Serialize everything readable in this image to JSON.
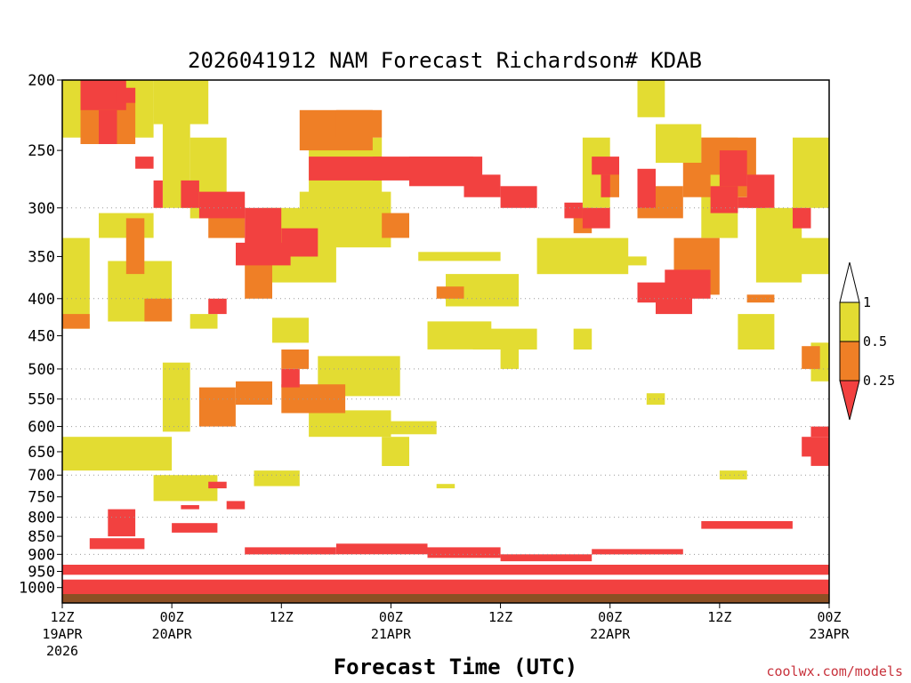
{
  "chart_data": {
    "type": "heatmap",
    "title": "2026041912 NAM Forecast Richardson# KDAB",
    "xlabel": "Forecast Time (UTC)",
    "ylabel": "",
    "y_scale": "log-pressure (hPa), inverted",
    "ylim": [
      200,
      1050
    ],
    "xlim_hours": [
      0,
      84
    ],
    "y_ticks": [
      200,
      250,
      300,
      350,
      400,
      450,
      500,
      550,
      600,
      650,
      700,
      750,
      800,
      850,
      900,
      950,
      1000
    ],
    "x_ticks": [
      {
        "hour": 0,
        "line1": "12Z",
        "line2": "19APR",
        "line3": "2026"
      },
      {
        "hour": 12,
        "line1": "00Z",
        "line2": "20APR",
        "line3": ""
      },
      {
        "hour": 24,
        "line1": "12Z",
        "line2": "",
        "line3": ""
      },
      {
        "hour": 36,
        "line1": "00Z",
        "line2": "21APR",
        "line3": ""
      },
      {
        "hour": 48,
        "line1": "12Z",
        "line2": "",
        "line3": ""
      },
      {
        "hour": 60,
        "line1": "00Z",
        "line2": "22APR",
        "line3": ""
      },
      {
        "hour": 72,
        "line1": "12Z",
        "line2": "",
        "line3": ""
      },
      {
        "hour": 84,
        "line1": "00Z",
        "line2": "23APR",
        "line3": ""
      }
    ],
    "dotted_gridlines_hpa": [
      300,
      400,
      500,
      550,
      600,
      700,
      800,
      900
    ],
    "legend": {
      "placement": "right",
      "levels": [
        "1",
        "0.5",
        "0.25"
      ],
      "categories": [
        {
          "range": "> 1",
          "color": "#ffffff"
        },
        {
          "range": "0.5 – 1",
          "color": "#e3dc32"
        },
        {
          "range": "0.25 – 0.5",
          "color": "#ef7f26"
        },
        {
          "range": "< 0.25",
          "color": "#f24140"
        }
      ]
    },
    "cell_hours": 1,
    "series": [
      {
        "name": "Ri 0.5–1",
        "category": 1,
        "cells": [
          [
            0,
            10,
            200,
            240
          ],
          [
            10,
            16,
            200,
            230
          ],
          [
            0,
            3,
            330,
            440
          ],
          [
            4,
            10,
            305,
            330
          ],
          [
            5,
            12,
            355,
            430
          ],
          [
            11,
            14,
            220,
            300
          ],
          [
            14,
            18,
            240,
            310
          ],
          [
            22,
            30,
            300,
            380
          ],
          [
            26,
            36,
            285,
            340
          ],
          [
            23,
            27,
            425,
            460
          ],
          [
            28,
            37,
            480,
            545
          ],
          [
            27,
            36,
            570,
            620
          ],
          [
            33,
            41,
            590,
            615
          ],
          [
            11,
            14,
            490,
            610
          ],
          [
            0,
            12,
            620,
            690
          ],
          [
            10,
            17,
            700,
            760
          ],
          [
            21,
            26,
            690,
            725
          ],
          [
            27,
            35,
            240,
            300
          ],
          [
            39,
            48,
            345,
            355
          ],
          [
            40,
            47,
            430,
            470
          ],
          [
            42,
            50,
            370,
            410
          ],
          [
            45,
            52,
            440,
            470
          ],
          [
            52,
            62,
            330,
            370
          ],
          [
            57,
            60,
            240,
            300
          ],
          [
            60,
            64,
            350,
            360
          ],
          [
            63,
            66,
            200,
            225
          ],
          [
            65,
            70,
            230,
            260
          ],
          [
            70,
            74,
            240,
            330
          ],
          [
            74,
            78,
            420,
            470
          ],
          [
            76,
            81,
            300,
            380
          ],
          [
            80,
            84,
            240,
            300
          ],
          [
            80,
            84,
            330,
            370
          ],
          [
            82,
            84,
            460,
            520
          ],
          [
            35,
            38,
            620,
            680
          ],
          [
            41,
            43,
            720,
            730
          ],
          [
            48,
            50,
            470,
            500
          ],
          [
            56,
            58,
            440,
            470
          ],
          [
            14,
            17,
            420,
            440
          ],
          [
            64,
            66,
            540,
            560
          ],
          [
            72,
            75,
            690,
            710
          ]
        ]
      },
      {
        "name": "Ri 0.25–0.5",
        "category": 2,
        "cells": [
          [
            2,
            8,
            205,
            245
          ],
          [
            7,
            9,
            310,
            370
          ],
          [
            9,
            12,
            400,
            430
          ],
          [
            15,
            19,
            530,
            600
          ],
          [
            19,
            23,
            520,
            560
          ],
          [
            24,
            31,
            525,
            575
          ],
          [
            24,
            27,
            470,
            500
          ],
          [
            20,
            23,
            355,
            400
          ],
          [
            16,
            20,
            300,
            330
          ],
          [
            26,
            34,
            220,
            250
          ],
          [
            30,
            35,
            220,
            240
          ],
          [
            35,
            38,
            305,
            330
          ],
          [
            56,
            58,
            300,
            325
          ],
          [
            59,
            61,
            265,
            290
          ],
          [
            63,
            68,
            280,
            310
          ],
          [
            68,
            71,
            260,
            290
          ],
          [
            70,
            76,
            240,
            270
          ],
          [
            72,
            75,
            255,
            290
          ],
          [
            67,
            72,
            330,
            395
          ],
          [
            75,
            78,
            395,
            405
          ],
          [
            81,
            83,
            465,
            500
          ],
          [
            0,
            3,
            420,
            440
          ],
          [
            41,
            44,
            385,
            400
          ]
        ]
      },
      {
        "name": "Ri < 0.25",
        "category": 3,
        "cells": [
          [
            2,
            7,
            200,
            220
          ],
          [
            4,
            6,
            220,
            245
          ],
          [
            6,
            8,
            205,
            215
          ],
          [
            8,
            10,
            255,
            265
          ],
          [
            10,
            11,
            275,
            300
          ],
          [
            13,
            15,
            275,
            300
          ],
          [
            15,
            20,
            285,
            310
          ],
          [
            20,
            24,
            300,
            340
          ],
          [
            24,
            28,
            320,
            350
          ],
          [
            19,
            25,
            335,
            360
          ],
          [
            27,
            35,
            255,
            275
          ],
          [
            34,
            45,
            255,
            275
          ],
          [
            38,
            46,
            255,
            280
          ],
          [
            44,
            48,
            270,
            290
          ],
          [
            48,
            52,
            280,
            300
          ],
          [
            55,
            57,
            295,
            310
          ],
          [
            57,
            60,
            300,
            320
          ],
          [
            58,
            61,
            255,
            270
          ],
          [
            59,
            60,
            270,
            290
          ],
          [
            63,
            65,
            265,
            300
          ],
          [
            71,
            74,
            280,
            305
          ],
          [
            72,
            75,
            250,
            280
          ],
          [
            74,
            77,
            290,
            300
          ],
          [
            75,
            78,
            270,
            300
          ],
          [
            80,
            82,
            300,
            320
          ],
          [
            63,
            65,
            380,
            405
          ],
          [
            65,
            69,
            380,
            420
          ],
          [
            66,
            71,
            365,
            400
          ],
          [
            16,
            18,
            400,
            420
          ],
          [
            24,
            26,
            500,
            530
          ],
          [
            5,
            8,
            780,
            850
          ],
          [
            16,
            18,
            715,
            730
          ],
          [
            13,
            15,
            770,
            780
          ],
          [
            18,
            20,
            760,
            780
          ],
          [
            81,
            84,
            620,
            660
          ],
          [
            82,
            84,
            600,
            620
          ],
          [
            82,
            84,
            640,
            680
          ],
          [
            3,
            9,
            855,
            885
          ],
          [
            12,
            17,
            815,
            840
          ],
          [
            20,
            30,
            880,
            900
          ],
          [
            30,
            40,
            870,
            900
          ],
          [
            40,
            48,
            880,
            910
          ],
          [
            48,
            58,
            900,
            920
          ],
          [
            58,
            68,
            885,
            900
          ],
          [
            70,
            80,
            810,
            830
          ],
          [
            0,
            84,
            930,
            960
          ],
          [
            0,
            84,
            975,
            1050
          ]
        ]
      }
    ],
    "surface": {
      "name": "below ground",
      "color": "#8c5024",
      "pressure_hpa": 1050
    }
  },
  "credit": "coolwx.com/models"
}
